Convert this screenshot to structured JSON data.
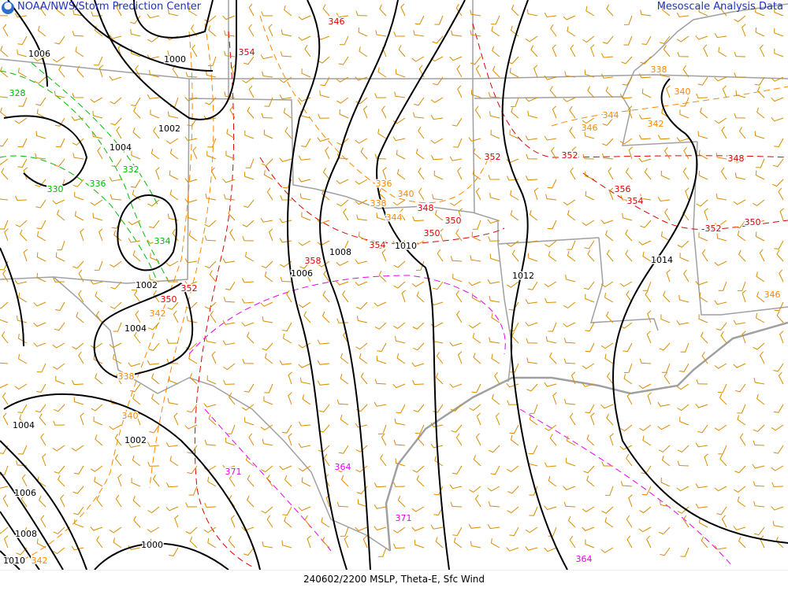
{
  "header": {
    "left_title": "NOAA/NWS/Storm Prediction Center",
    "right_title": "Mesoscale Analysis Data"
  },
  "footer": {
    "caption": "240602/2200 MSLP, Theta-E, Sfc Wind"
  },
  "colors": {
    "isobar": "#000000",
    "border": "#a0a0a0",
    "wind_barb": "#d98c00",
    "theta_low": "#00bb00",
    "theta_mid": "#ff8800",
    "theta_high": "#dd0000",
    "theta_max": "#ee00ee",
    "header_text": "#2233bb"
  },
  "isobar_labels": [
    "1006",
    "1000",
    "1002",
    "1004",
    "1002",
    "1004",
    "1006",
    "1008",
    "1010",
    "1012",
    "1014",
    "1004",
    "1002",
    "1006",
    "1008",
    "1010",
    "1000"
  ],
  "theta_e_labels": [
    {
      "value": "328",
      "level": "low"
    },
    {
      "value": "332",
      "level": "low"
    },
    {
      "value": "336",
      "level": "low"
    },
    {
      "value": "330",
      "level": "low"
    },
    {
      "value": "334",
      "level": "low"
    },
    {
      "value": "336",
      "level": "mid"
    },
    {
      "value": "340",
      "level": "mid"
    },
    {
      "value": "338",
      "level": "mid"
    },
    {
      "value": "344",
      "level": "mid"
    },
    {
      "value": "342",
      "level": "mid"
    },
    {
      "value": "338",
      "level": "mid"
    },
    {
      "value": "340",
      "level": "mid"
    },
    {
      "value": "342",
      "level": "mid"
    },
    {
      "value": "338",
      "level": "mid"
    },
    {
      "value": "340",
      "level": "mid"
    },
    {
      "value": "344",
      "level": "mid"
    },
    {
      "value": "346",
      "level": "mid"
    },
    {
      "value": "342",
      "level": "mid"
    },
    {
      "value": "346",
      "level": "mid"
    },
    {
      "value": "346",
      "level": "high"
    },
    {
      "value": "354",
      "level": "high"
    },
    {
      "value": "352",
      "level": "high"
    },
    {
      "value": "352",
      "level": "high"
    },
    {
      "value": "356",
      "level": "high"
    },
    {
      "value": "354",
      "level": "high"
    },
    {
      "value": "348",
      "level": "high"
    },
    {
      "value": "352",
      "level": "high"
    },
    {
      "value": "350",
      "level": "high"
    },
    {
      "value": "358",
      "level": "high"
    },
    {
      "value": "354",
      "level": "high"
    },
    {
      "value": "350",
      "level": "high"
    },
    {
      "value": "348",
      "level": "high"
    },
    {
      "value": "350",
      "level": "high"
    },
    {
      "value": "352",
      "level": "high"
    },
    {
      "value": "350",
      "level": "high"
    },
    {
      "value": "371",
      "level": "max"
    },
    {
      "value": "364",
      "level": "max"
    },
    {
      "value": "371",
      "level": "max"
    },
    {
      "value": "364",
      "level": "max"
    }
  ]
}
